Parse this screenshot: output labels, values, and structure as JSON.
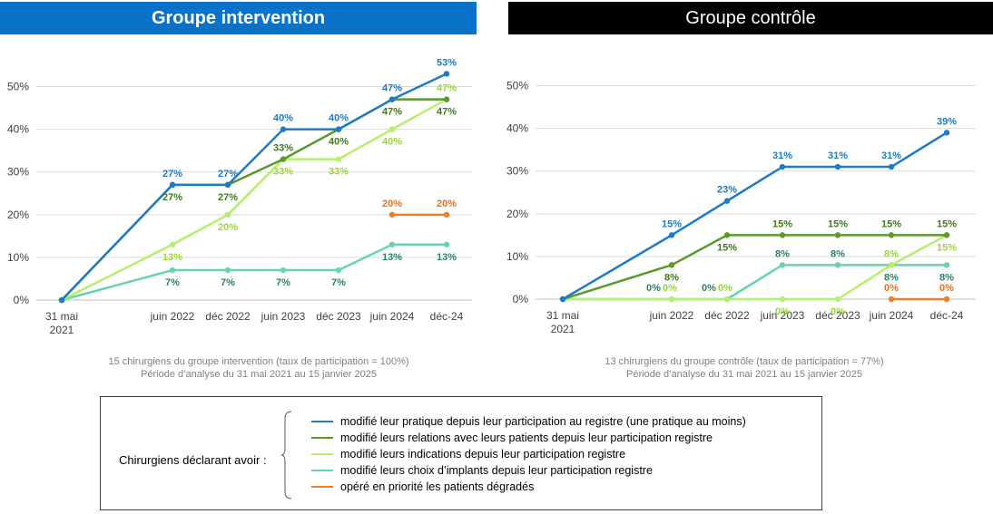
{
  "panels": {
    "left_title": "Groupe intervention",
    "right_title": "Groupe contrôle"
  },
  "captions": {
    "left_line1": "15 chirurgiens  du groupe intervention  (taux de participation  = 100%)",
    "left_line2": "Période d’analyse du 31 mai 2021 au 15 janvier 2025",
    "right_line1": "13 chirurgiens  du groupe contrôle  (taux de participation  = 77%)",
    "right_line2": "Période d’analyse du 31 mai 2021 au 15 janvier 2025"
  },
  "legend": {
    "intro": "Chirurgiens déclarant avoir :",
    "items": [
      {
        "label": "modifié leur pratique depuis leur participation au registre (une pratique au moins)",
        "color": "#1f7bc8"
      },
      {
        "label": "modifié leurs relations avec leurs patients depuis leur participation registre",
        "color": "#5a9a2a"
      },
      {
        "label": "modifié leurs indications depuis leur participation registre",
        "color": "#b5ef6c"
      },
      {
        "label": "modifié leurs choix d’implants depuis leur participation registre",
        "color": "#66d4b4"
      },
      {
        "label": "opéré en priorité les patients dégradés",
        "color": "#f07f2a"
      }
    ]
  },
  "chart_data": [
    {
      "type": "line",
      "title": "Groupe intervention",
      "categories": [
        "31 mai 2021",
        "juin 2022",
        "déc 2022",
        "juin 2023",
        "déc 2023",
        "juin 2024",
        "déc-24"
      ],
      "y_ticks": [
        "0%",
        "10%",
        "20%",
        "30%",
        "40%",
        "50%"
      ],
      "ylim": [
        0,
        55
      ],
      "grid": true,
      "series": [
        {
          "name": "modifié leur pratique depuis leur participation au registre (une pratique au moins)",
          "color": "#1f7bc8",
          "values": [
            0,
            27,
            27,
            40,
            40,
            47,
            53
          ],
          "labels": [
            "",
            "27%",
            "27%",
            "40%",
            "40%",
            "47%",
            "53%"
          ]
        },
        {
          "name": "modifié leurs relations avec leurs patients depuis leur participation registre",
          "color": "#5a9a2a",
          "values": [
            0,
            27,
            27,
            33,
            40,
            47,
            47
          ],
          "labels": [
            "",
            "27%",
            "27%",
            "33%",
            "40%",
            "47%",
            "47%"
          ]
        },
        {
          "name": "modifié leurs indications depuis leur participation registre",
          "color": "#b5ef6c",
          "values": [
            0,
            13,
            20,
            33,
            33,
            40,
            47
          ],
          "labels": [
            "",
            "13%",
            "20%",
            "33%",
            "33%",
            "40%",
            "47%"
          ]
        },
        {
          "name": "modifié leurs choix d’implants depuis leur participation registre",
          "color": "#66d4b4",
          "values": [
            0,
            7,
            7,
            7,
            7,
            13,
            13
          ],
          "labels": [
            "",
            "7%",
            "7%",
            "7%",
            "7%",
            "13%",
            "13%"
          ]
        },
        {
          "name": "opéré en priorité les patients dégradés",
          "color": "#f07f2a",
          "values": [
            null,
            null,
            null,
            null,
            null,
            20,
            20
          ],
          "labels": [
            "",
            "",
            "",
            "",
            "",
            "20%",
            "20%"
          ]
        }
      ]
    },
    {
      "type": "line",
      "title": "Groupe contrôle",
      "categories": [
        "31 mai 2021",
        "juin 2022",
        "déc 2022",
        "juin 2023",
        "déc 2023",
        "juin 2024",
        "déc-24"
      ],
      "y_ticks": [
        "0%",
        "10%",
        "20%",
        "30%",
        "40%",
        "50%"
      ],
      "ylim": [
        0,
        55
      ],
      "grid": true,
      "series": [
        {
          "name": "modifié leur pratique depuis leur participation au registre (une pratique au moins)",
          "color": "#1f7bc8",
          "values": [
            0,
            15,
            23,
            31,
            31,
            31,
            39
          ],
          "labels": [
            "",
            "15%",
            "23%",
            "31%",
            "31%",
            "31%",
            "39%"
          ]
        },
        {
          "name": "modifié leurs relations avec leurs patients depuis leur participation registre",
          "color": "#5a9a2a",
          "values": [
            0,
            8,
            15,
            15,
            15,
            15,
            15
          ],
          "labels": [
            "",
            "8%",
            "15%",
            "15%",
            "15%",
            "15%",
            "15%"
          ]
        },
        {
          "name": "modifié leurs indications depuis leur participation registre",
          "color": "#b5ef6c",
          "values": [
            0,
            0,
            0,
            0,
            0,
            8,
            15
          ],
          "labels": [
            "",
            "0%",
            "0%",
            "0%",
            "0%",
            "8%",
            "15%"
          ]
        },
        {
          "name": "modifié leurs choix d’implants depuis leur participation registre",
          "color": "#66d4b4",
          "values": [
            0,
            0,
            0,
            8,
            8,
            8,
            8
          ],
          "labels": [
            "",
            "0%",
            "0%",
            "8%",
            "8%",
            "8%",
            "8%"
          ]
        },
        {
          "name": "opéré en priorité les patients dégradés",
          "color": "#f07f2a",
          "values": [
            null,
            null,
            null,
            null,
            null,
            0,
            0
          ],
          "labels": [
            "",
            "",
            "",
            "",
            "",
            "0%",
            "0%"
          ]
        }
      ]
    }
  ]
}
